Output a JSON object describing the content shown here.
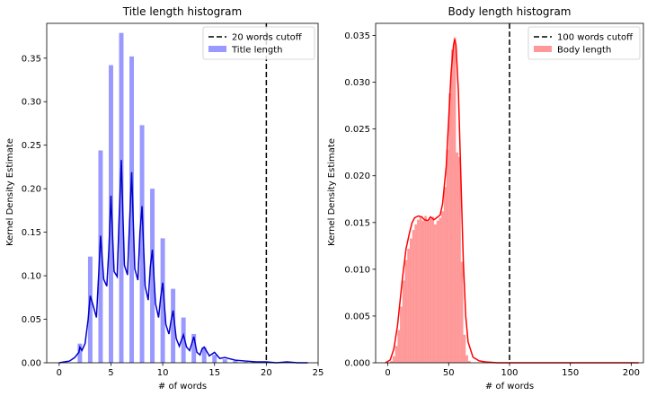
{
  "chart_data": [
    {
      "type": "bar",
      "title": "Title length histogram",
      "xlabel": "# of words",
      "ylabel": "Kernel Density Estimate",
      "xlim": [
        -1.2,
        25
      ],
      "ylim": [
        0,
        0.39
      ],
      "xticks": [
        0,
        5,
        10,
        15,
        20,
        25
      ],
      "yticks": [
        0.0,
        0.05,
        0.1,
        0.15,
        0.2,
        0.25,
        0.3,
        0.35
      ],
      "ytick_decimals": 2,
      "grid": false,
      "legend_position": "top-right",
      "hist_color": "#0000ff",
      "kde_color": "#0000cc",
      "cutoff_color": "#000000",
      "bar_width": 0.43,
      "series": [
        {
          "name": "Title length",
          "kind": "histogram",
          "bars": [
            {
              "x": 2,
              "y": 0.022
            },
            {
              "x": 3,
              "y": 0.122
            },
            {
              "x": 4,
              "y": 0.244
            },
            {
              "x": 5,
              "y": 0.342
            },
            {
              "x": 6,
              "y": 0.379
            },
            {
              "x": 7,
              "y": 0.352
            },
            {
              "x": 8,
              "y": 0.273
            },
            {
              "x": 9,
              "y": 0.2
            },
            {
              "x": 10,
              "y": 0.143
            },
            {
              "x": 11,
              "y": 0.085
            },
            {
              "x": 12,
              "y": 0.052
            },
            {
              "x": 13,
              "y": 0.033
            },
            {
              "x": 14,
              "y": 0.018
            },
            {
              "x": 15,
              "y": 0.009
            },
            {
              "x": 16,
              "y": 0.004
            },
            {
              "x": 17,
              "y": 0.002
            },
            {
              "x": 18,
              "y": 0.001
            }
          ]
        },
        {
          "name": "Title length",
          "kind": "kde",
          "x": [
            0,
            1,
            1.5,
            1.9,
            2,
            2.2,
            2.5,
            2.8,
            3,
            3.3,
            3.6,
            3.8,
            4,
            4.3,
            4.6,
            4.8,
            5,
            5.3,
            5.6,
            5.8,
            6,
            6.3,
            6.6,
            6.8,
            7,
            7.3,
            7.6,
            7.8,
            8,
            8.3,
            8.6,
            8.8,
            9,
            9.3,
            9.6,
            9.8,
            10,
            10.3,
            10.6,
            10.8,
            11,
            11.3,
            11.6,
            11.8,
            12,
            12.3,
            12.6,
            12.8,
            13,
            13.3,
            13.6,
            13.8,
            14,
            14.5,
            15,
            15.5,
            16,
            17,
            18,
            19,
            20,
            21,
            22,
            23,
            24
          ],
          "y": [
            0.0,
            0.002,
            0.006,
            0.012,
            0.018,
            0.014,
            0.022,
            0.05,
            0.077,
            0.065,
            0.052,
            0.098,
            0.146,
            0.096,
            0.088,
            0.13,
            0.192,
            0.105,
            0.099,
            0.17,
            0.233,
            0.112,
            0.101,
            0.162,
            0.219,
            0.108,
            0.095,
            0.15,
            0.18,
            0.088,
            0.072,
            0.11,
            0.13,
            0.068,
            0.052,
            0.075,
            0.092,
            0.044,
            0.033,
            0.048,
            0.06,
            0.028,
            0.019,
            0.026,
            0.032,
            0.018,
            0.014,
            0.022,
            0.03,
            0.012,
            0.009,
            0.016,
            0.018,
            0.008,
            0.012,
            0.005,
            0.006,
            0.003,
            0.002,
            0.001,
            0.001,
            0.0,
            0.001,
            0.0,
            0.0
          ]
        },
        {
          "name": "20 words cutoff",
          "kind": "vline",
          "x": 20
        }
      ]
    },
    {
      "type": "bar",
      "title": "Body length histogram",
      "xlabel": "# of words",
      "ylabel": "Kernel Density Estimate",
      "xlim": [
        -10,
        210
      ],
      "ylim": [
        0,
        0.0363
      ],
      "xticks": [
        0,
        50,
        100,
        150,
        200
      ],
      "yticks": [
        0.0,
        0.005,
        0.01,
        0.015,
        0.02,
        0.025,
        0.03,
        0.035
      ],
      "ytick_decimals": 3,
      "grid": false,
      "legend_position": "top-right",
      "hist_color": "#ff0000",
      "kde_color": "#ff0000",
      "cutoff_color": "#000000",
      "bar_width": 2,
      "series": [
        {
          "name": "Body length",
          "kind": "histogram",
          "bars": [
            {
              "x": 3,
              "y": 0.0002
            },
            {
              "x": 5,
              "y": 0.0007
            },
            {
              "x": 7,
              "y": 0.0018
            },
            {
              "x": 9,
              "y": 0.0035
            },
            {
              "x": 11,
              "y": 0.006
            },
            {
              "x": 13,
              "y": 0.0088
            },
            {
              "x": 15,
              "y": 0.011
            },
            {
              "x": 17,
              "y": 0.0122
            },
            {
              "x": 19,
              "y": 0.0133
            },
            {
              "x": 21,
              "y": 0.0142
            },
            {
              "x": 23,
              "y": 0.0148
            },
            {
              "x": 25,
              "y": 0.0153
            },
            {
              "x": 27,
              "y": 0.0156
            },
            {
              "x": 29,
              "y": 0.0152
            },
            {
              "x": 31,
              "y": 0.0157
            },
            {
              "x": 33,
              "y": 0.0151
            },
            {
              "x": 35,
              "y": 0.0154
            },
            {
              "x": 37,
              "y": 0.0156
            },
            {
              "x": 39,
              "y": 0.0148
            },
            {
              "x": 41,
              "y": 0.0152
            },
            {
              "x": 43,
              "y": 0.0155
            },
            {
              "x": 45,
              "y": 0.0162
            },
            {
              "x": 47,
              "y": 0.0188
            },
            {
              "x": 49,
              "y": 0.0228
            },
            {
              "x": 51,
              "y": 0.0288
            },
            {
              "x": 53,
              "y": 0.0335
            },
            {
              "x": 55,
              "y": 0.0348
            },
            {
              "x": 57,
              "y": 0.0225
            },
            {
              "x": 59,
              "y": 0.022
            },
            {
              "x": 61,
              "y": 0.0108
            },
            {
              "x": 63,
              "y": 0.003
            },
            {
              "x": 65,
              "y": 0.0008
            },
            {
              "x": 67,
              "y": 0.0002
            }
          ]
        },
        {
          "name": "Body length",
          "kind": "kde",
          "x": [
            -2,
            2,
            5,
            8,
            10,
            12,
            15,
            18,
            20,
            22,
            25,
            28,
            30,
            33,
            35,
            38,
            40,
            43,
            45,
            48,
            50,
            52,
            54,
            55,
            56,
            58,
            60,
            62,
            64,
            66,
            70,
            75,
            80,
            90,
            100,
            150,
            206
          ],
          "y": [
            0.0,
            0.0003,
            0.0015,
            0.004,
            0.0065,
            0.009,
            0.0122,
            0.014,
            0.015,
            0.0155,
            0.0157,
            0.0156,
            0.0153,
            0.0152,
            0.0156,
            0.0153,
            0.0155,
            0.0158,
            0.017,
            0.021,
            0.026,
            0.031,
            0.034,
            0.0346,
            0.034,
            0.029,
            0.02,
            0.011,
            0.005,
            0.0022,
            0.0006,
            0.0002,
            0.0001,
            0.0,
            0.0,
            0.0,
            0.0
          ]
        },
        {
          "name": "100 words cutoff",
          "kind": "vline",
          "x": 100
        }
      ]
    }
  ]
}
